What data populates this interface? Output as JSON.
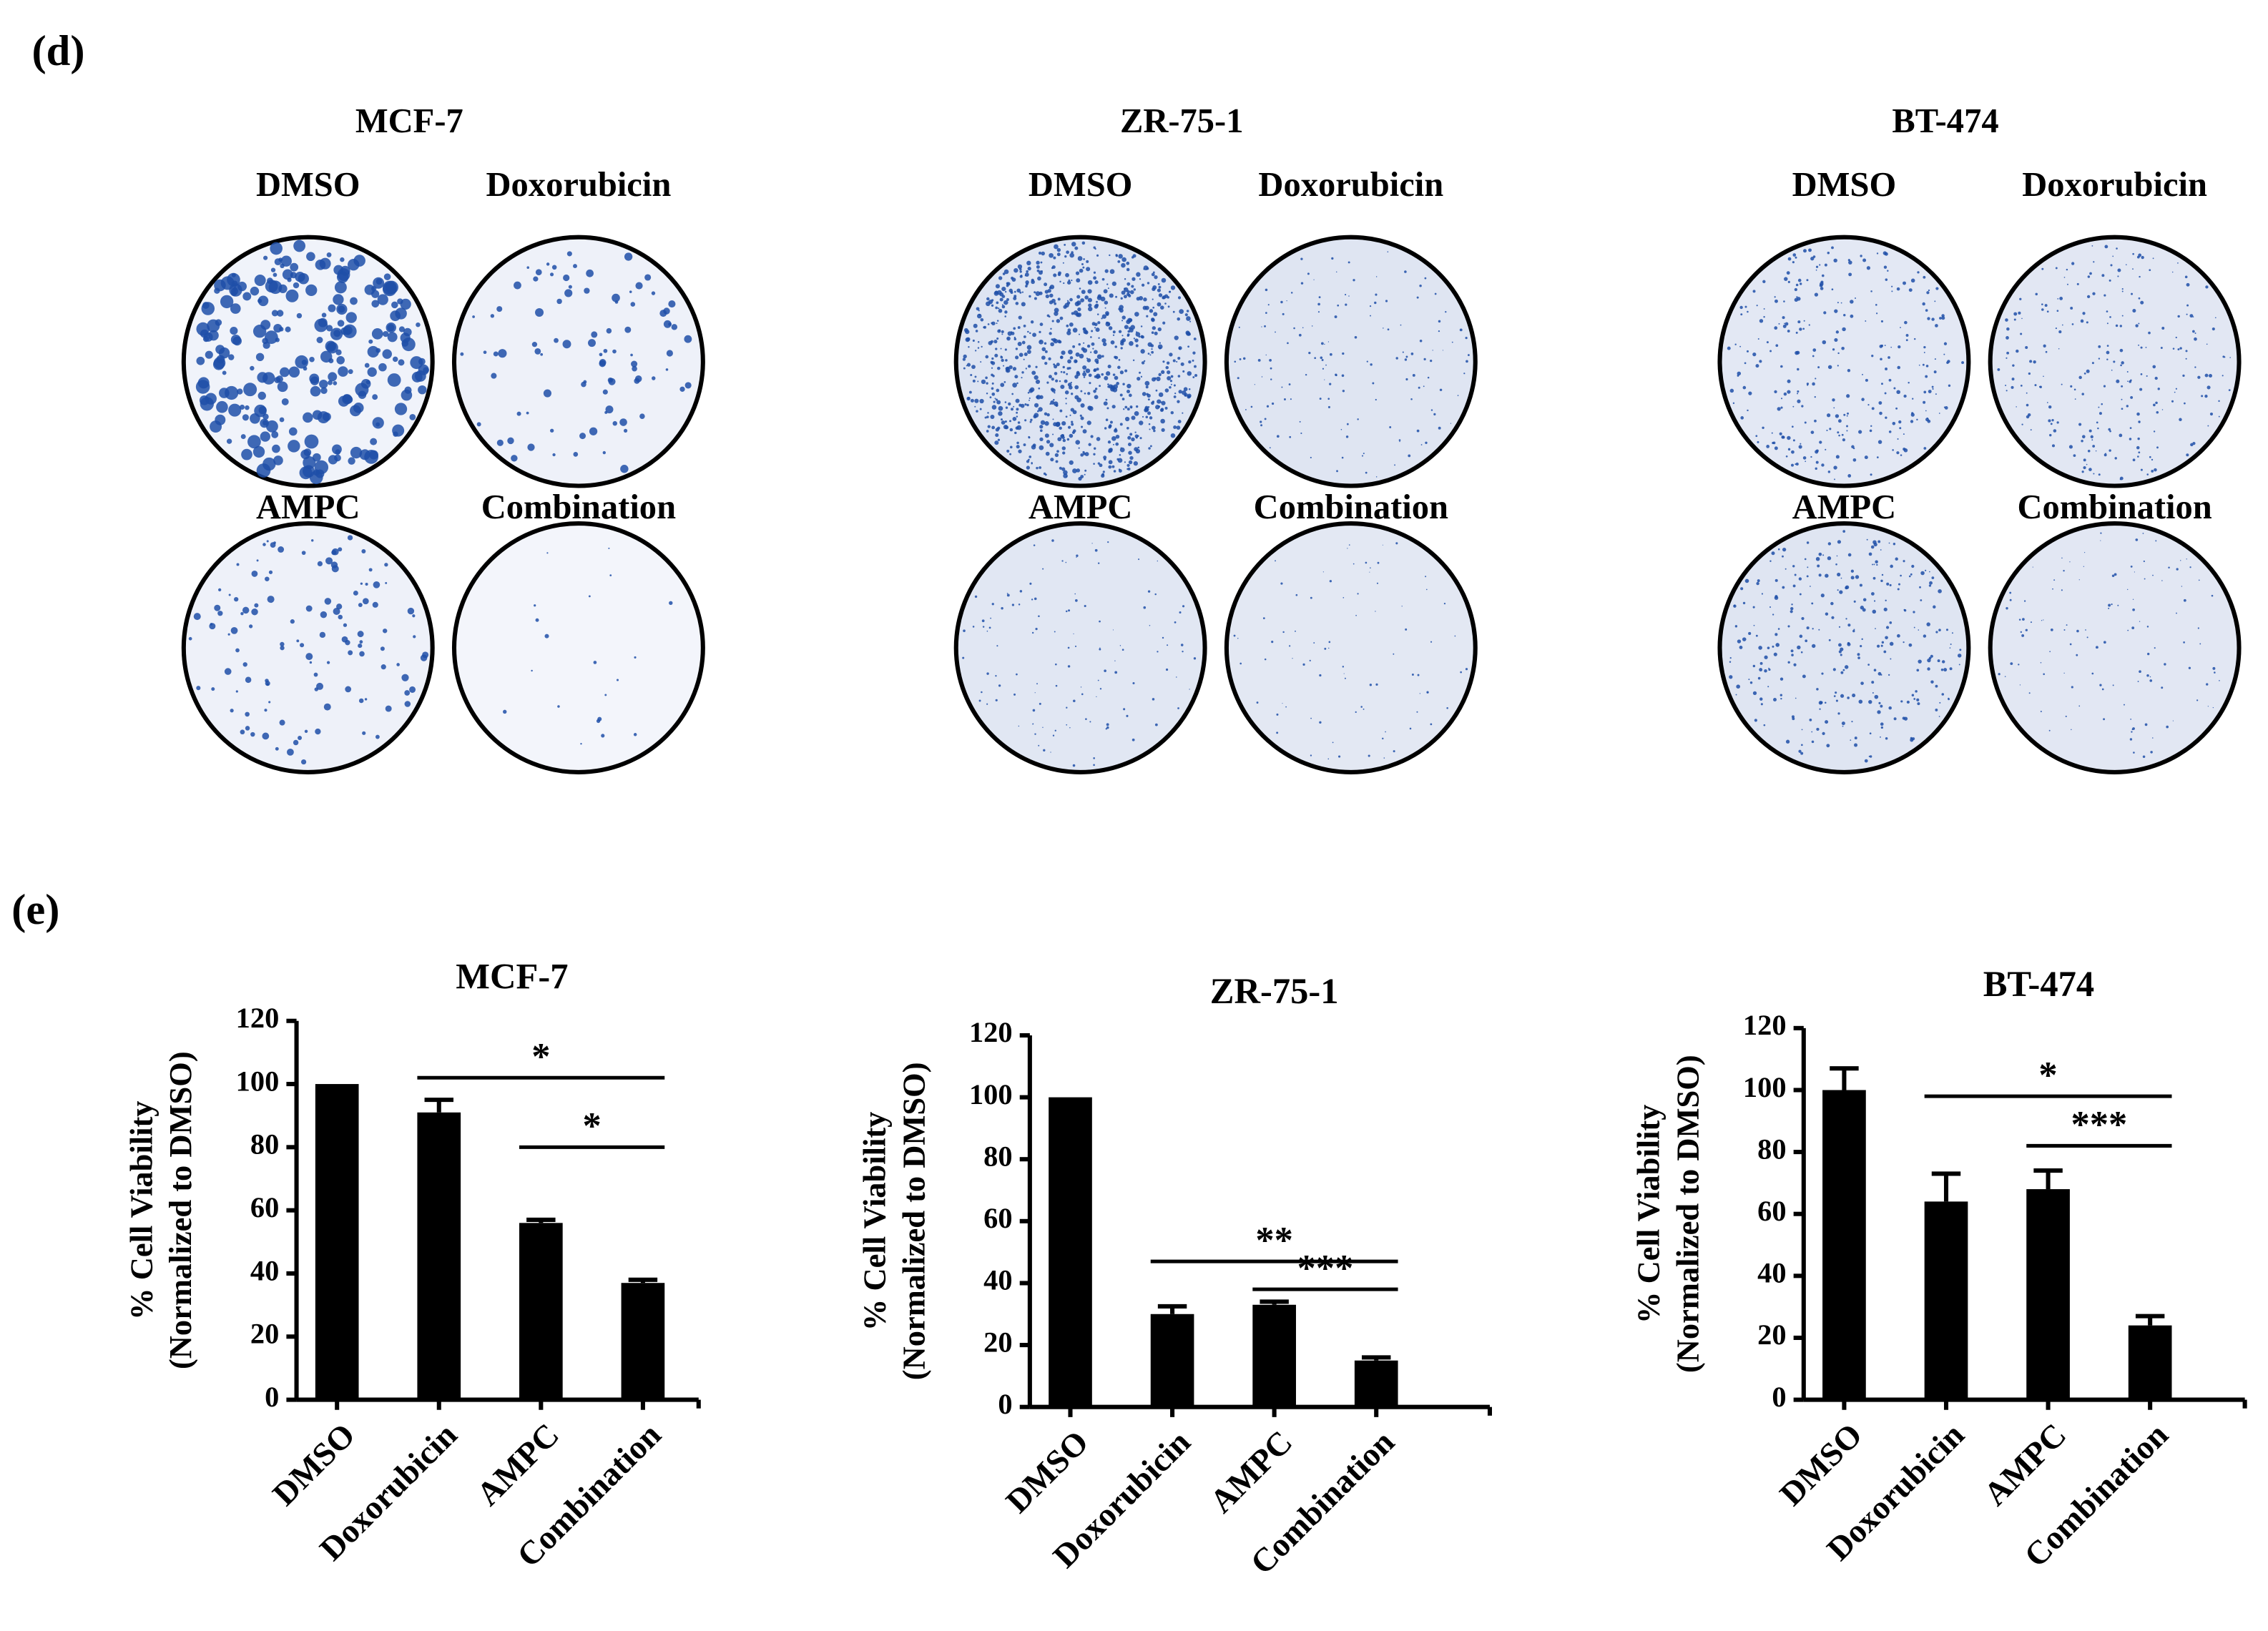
{
  "panel_labels": [
    "(d)",
    "(e)"
  ],
  "plates": [
    {
      "title": "MCF-7",
      "wells": [
        "DMSO",
        "Doxorubicin",
        "AMPC",
        "Combination"
      ]
    },
    {
      "title": "ZR-75-1",
      "wells": [
        "DMSO",
        "Doxorubicin",
        "AMPC",
        "Combination"
      ]
    },
    {
      "title": "BT-474",
      "wells": [
        "DMSO",
        "Doxorubicin",
        "AMPC",
        "Combination"
      ]
    }
  ],
  "chart_data": [
    {
      "type": "bar",
      "title": "MCF-7",
      "ylabel": [
        "% Cell Viability",
        "(Normalized to DMSO)"
      ],
      "categories": [
        "DMSO",
        "Doxorubicin",
        "AMPC",
        "Combination"
      ],
      "values": [
        100,
        91,
        56,
        37
      ],
      "errors": [
        0,
        4,
        1,
        1
      ],
      "color": "#000000",
      "ylim": [
        0,
        120
      ],
      "yticks": [
        0,
        20,
        40,
        60,
        80,
        100,
        120
      ],
      "annotations": [
        {
          "from": 1,
          "to": 3,
          "y": 102,
          "label": "*"
        },
        {
          "from": 2,
          "to": 3,
          "y": 80,
          "label": "*"
        }
      ]
    },
    {
      "type": "bar",
      "title": "ZR-75-1",
      "ylabel": [
        "% Cell Viability",
        "(Normalized to DMSO)"
      ],
      "categories": [
        "DMSO",
        "Doxorubicin",
        "AMPC",
        "Combination"
      ],
      "values": [
        100,
        30,
        33,
        15
      ],
      "errors": [
        0,
        2.5,
        1,
        1
      ],
      "color": "#000000",
      "ylim": [
        0,
        120
      ],
      "yticks": [
        0,
        20,
        40,
        60,
        80,
        100,
        120
      ],
      "annotations": [
        {
          "from": 1,
          "to": 3,
          "y": 47,
          "label": "**"
        },
        {
          "from": 2,
          "to": 3,
          "y": 38,
          "label": "***"
        }
      ]
    },
    {
      "type": "bar",
      "title": "BT-474",
      "ylabel": [
        "% Cell Viability",
        "(Normalized to DMSO)"
      ],
      "categories": [
        "DMSO",
        "Doxorubicin",
        "AMPC",
        "Combination"
      ],
      "values": [
        100,
        64,
        68,
        24
      ],
      "errors": [
        7,
        9,
        6,
        3
      ],
      "color": "#000000",
      "ylim": [
        0,
        120
      ],
      "yticks": [
        0,
        20,
        40,
        60,
        80,
        100,
        120
      ],
      "annotations": [
        {
          "from": 1,
          "to": 3,
          "y": 98,
          "label": "*"
        },
        {
          "from": 2,
          "to": 3,
          "y": 82,
          "label": "***"
        }
      ]
    }
  ]
}
